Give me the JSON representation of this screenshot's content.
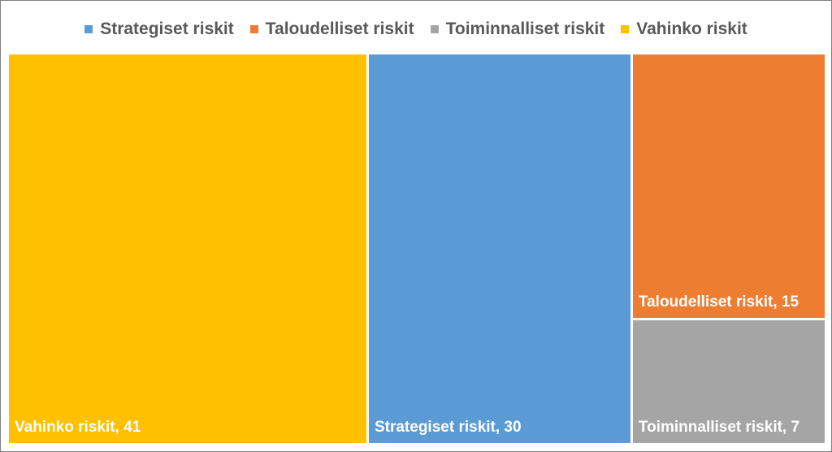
{
  "chart_data": {
    "type": "treemap",
    "title": "",
    "legend": {
      "position": "top",
      "items": [
        {
          "name": "Strategiset riskit",
          "color": "#5B9BD5"
        },
        {
          "name": "Taloudelliset riskit",
          "color": "#ED7D31"
        },
        {
          "name": "Toiminnalliset riskit",
          "color": "#A5A5A5"
        },
        {
          "name": "Vahinko riskit",
          "color": "#FFC000"
        }
      ]
    },
    "tiles": [
      {
        "name": "Vahinko riskit",
        "value": 41,
        "color": "#FFC000",
        "label": "Vahinko riskit, 41"
      },
      {
        "name": "Strategiset riskit",
        "value": 30,
        "color": "#5B9BD5",
        "label": "Strategiset riskit, 30"
      },
      {
        "name": "Taloudelliset riskit",
        "value": 15,
        "color": "#ED7D31",
        "label": "Taloudelliset riskit, 15"
      },
      {
        "name": "Toiminnalliset riskit",
        "value": 7,
        "color": "#A5A5A5",
        "label": "Toiminnalliset riskit, 7"
      }
    ]
  }
}
